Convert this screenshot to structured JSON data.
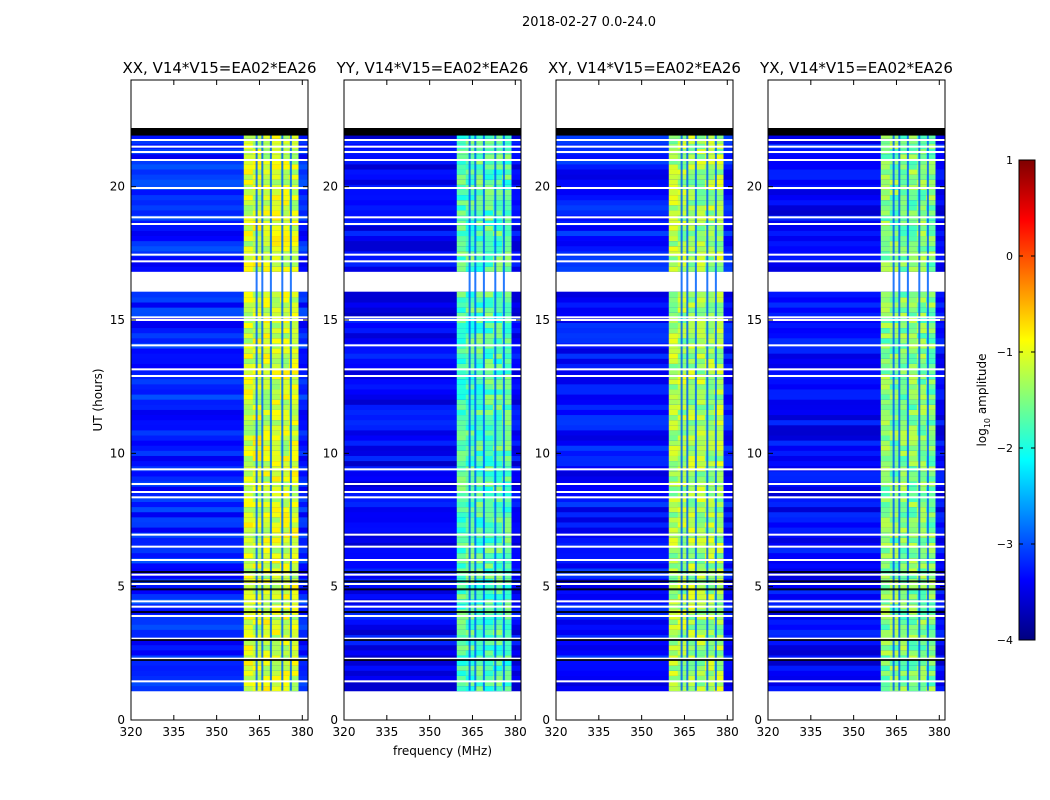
{
  "figure": {
    "suptitle": "2018-02-27 0.0-24.0"
  },
  "chart_data": [
    {
      "type": "heatmap",
      "title": "XX, V14*V15=EA02*EA26",
      "xlabel": "",
      "ylabel": "UT (hours)",
      "xlim": [
        320,
        382
      ],
      "ylim": [
        0,
        24
      ],
      "xticks": [
        "320",
        "335",
        "350",
        "365",
        "380"
      ],
      "yticks": [
        "0",
        "5",
        "10",
        "15",
        "20"
      ],
      "rfi_band_mhz": [
        359.5,
        378.5
      ],
      "rfi_level_log10": -1.1,
      "background_level_log10": -3.2
    },
    {
      "type": "heatmap",
      "title": "YY, V14*V15=EA02*EA26",
      "xlabel": "frequency (MHz)",
      "ylabel": "",
      "xlim": [
        320,
        382
      ],
      "ylim": [
        0,
        24
      ],
      "xticks": [
        "320",
        "335",
        "350",
        "365",
        "380"
      ],
      "yticks": [
        "0",
        "5",
        "10",
        "15",
        "20"
      ],
      "rfi_band_mhz": [
        359.5,
        378.5
      ],
      "rfi_level_log10": -1.7,
      "background_level_log10": -3.4
    },
    {
      "type": "heatmap",
      "title": "XY, V14*V15=EA02*EA26",
      "xlabel": "",
      "ylabel": "",
      "xlim": [
        320,
        382
      ],
      "ylim": [
        0,
        24
      ],
      "xticks": [
        "320",
        "335",
        "350",
        "365",
        "380"
      ],
      "yticks": [
        "0",
        "5",
        "10",
        "15",
        "20"
      ],
      "rfi_band_mhz": [
        359.5,
        378.5
      ],
      "rfi_level_log10": -1.3,
      "background_level_log10": -3.3
    },
    {
      "type": "heatmap",
      "title": "YX, V14*V15=EA02*EA26",
      "xlabel": "",
      "ylabel": "",
      "xlim": [
        320,
        382
      ],
      "ylim": [
        0,
        24
      ],
      "xticks": [
        "320",
        "335",
        "350",
        "365",
        "380"
      ],
      "yticks": [
        "0",
        "5",
        "10",
        "15",
        "20"
      ],
      "rfi_band_mhz": [
        359.5,
        378.5
      ],
      "rfi_level_log10": -1.5,
      "background_level_log10": -3.4
    }
  ],
  "data_coverage": {
    "data_hours": [
      1.1,
      22.2
    ],
    "gap_hours": [
      [
        16.0,
        17.0
      ]
    ],
    "flag_lines_hours": [
      1.45,
      2.3,
      3.05,
      3.9,
      4.25,
      4.45,
      5.1,
      5.45,
      6.0,
      6.5,
      6.95,
      8.35,
      8.55,
      8.85,
      9.4,
      12.9,
      13.15,
      14.05,
      15.0,
      15.1,
      17.2,
      17.45,
      18.6,
      18.85,
      19.95,
      21.0,
      21.3,
      21.5,
      21.75
    ],
    "channel_stripe_mhz": [
      364.0,
      366.0,
      369.0,
      373.0,
      376.0
    ]
  },
  "colorbar": {
    "label": "log10 amplitude",
    "label_base": "log",
    "label_sub": "10",
    "label_rest": " amplitude",
    "range": [
      -4,
      1
    ],
    "ticks": [
      "1",
      "0",
      "−1",
      "−2",
      "−3",
      "−4"
    ],
    "colormap": "jet",
    "colors": [
      "#00007f",
      "#0000ff",
      "#007fff",
      "#00ffff",
      "#7fff7f",
      "#ffff00",
      "#ff7f00",
      "#ff0000",
      "#7f0000"
    ]
  }
}
